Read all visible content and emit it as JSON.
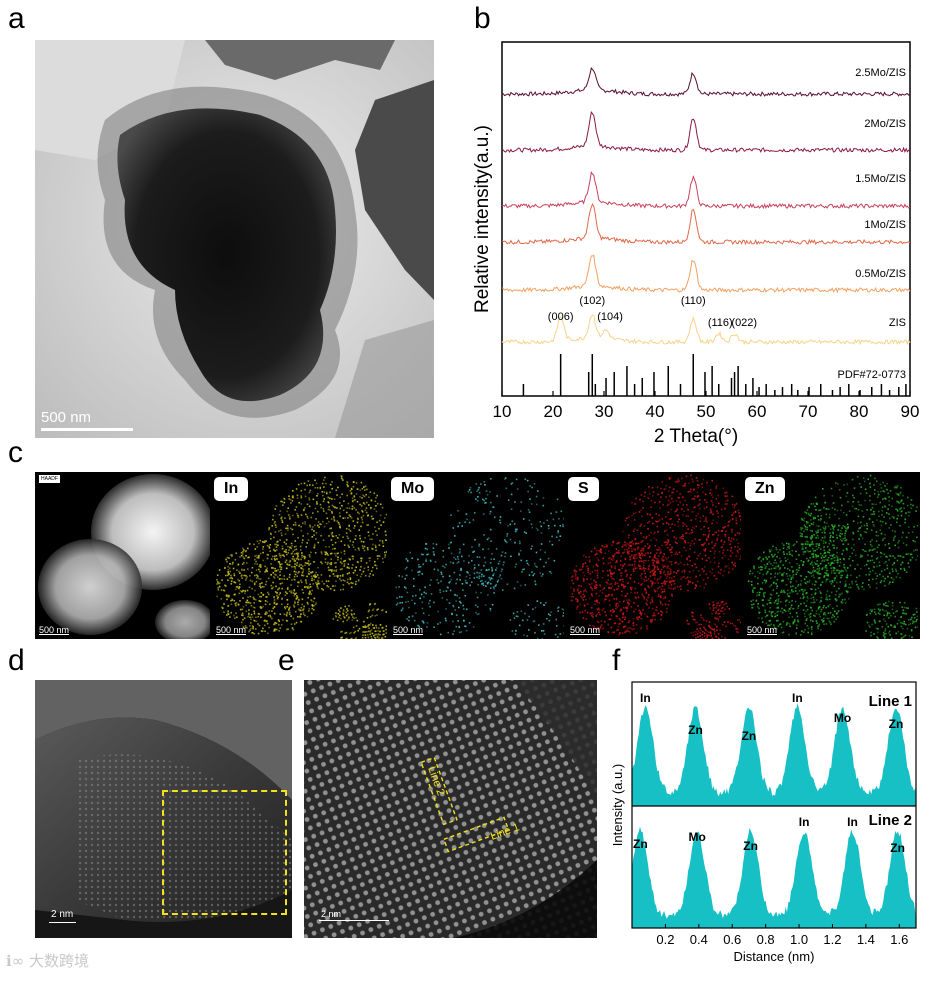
{
  "panels": {
    "a": {
      "letter": "a",
      "scale_bar": "500 nm"
    },
    "b": {
      "letter": "b",
      "ylabel": "Relative intensity(a.u.)",
      "xlabel": "2 Theta(°)",
      "xticks": [
        10,
        20,
        30,
        40,
        50,
        60,
        70,
        80,
        90
      ],
      "series_labels": [
        "2.5Mo/ZIS",
        "2Mo/ZIS",
        "1.5Mo/ZIS",
        "1Mo/ZIS",
        "0.5Mo/ZIS",
        "ZIS",
        "PDF#72-0773"
      ],
      "series_colors": [
        "#5a0f2e",
        "#8b1a45",
        "#c9405c",
        "#e06848",
        "#f2a060",
        "#f7d38a",
        "#000000"
      ],
      "peak_labels": [
        "(006)",
        "(102)",
        "(104)",
        "(110)",
        "(116)",
        "(022)"
      ]
    },
    "c": {
      "letter": "c",
      "elements": [
        "In",
        "Mo",
        "S",
        "Zn"
      ],
      "element_colors": [
        "#c8c020",
        "#40b8c0",
        "#d01818",
        "#28b028"
      ],
      "scale_bar": "500 nm",
      "corner_tag": "HAADF"
    },
    "d": {
      "letter": "d",
      "scale_bar": "2 nm"
    },
    "e": {
      "letter": "e",
      "scale_bar": "2 nm",
      "line1": "Line 1",
      "line2": "Line 2"
    },
    "f": {
      "letter": "f",
      "ylabel": "Intensity (a.u.)",
      "xlabel": "Distance (nm)",
      "xticks": [
        "0.2",
        "0.4",
        "0.6",
        "0.8",
        "1.0",
        "1.2",
        "1.4",
        "1.6"
      ],
      "line1_title": "Line 1",
      "line2_title": "Line 2",
      "line1_peaks": [
        "In",
        "Zn",
        "Zn",
        "In",
        "Mo",
        "Zn"
      ],
      "line2_peaks": [
        "Zn",
        "Mo",
        "Zn",
        "In",
        "In",
        "Zn"
      ],
      "fill_color": "#16c0c4"
    }
  },
  "chart_data": [
    {
      "type": "line",
      "panel": "b",
      "xlabel": "2 Theta(°)",
      "ylabel": "Relative intensity(a.u.)",
      "xlim": [
        10,
        90
      ],
      "series": [
        {
          "name": "2.5Mo/ZIS",
          "peaks_2theta": [
            27.7,
            47.5
          ]
        },
        {
          "name": "2Mo/ZIS",
          "peaks_2theta": [
            27.7,
            47.5
          ]
        },
        {
          "name": "1.5Mo/ZIS",
          "peaks_2theta": [
            27.7,
            47.5
          ]
        },
        {
          "name": "1Mo/ZIS",
          "peaks_2theta": [
            27.7,
            47.5
          ]
        },
        {
          "name": "0.5Mo/ZIS",
          "peaks_2theta": [
            27.7,
            47.5
          ]
        },
        {
          "name": "ZIS",
          "peaks_2theta": [
            21.5,
            27.7,
            30.4,
            47.5,
            52.5,
            55.6
          ]
        }
      ],
      "reference_lines_2theta": [
        14.2,
        21.5,
        27.0,
        27.7,
        28.3,
        30.4,
        32.0,
        34.5,
        36.0,
        37.5,
        39.8,
        42.6,
        45.0,
        47.5,
        49.8,
        51.2,
        52.5,
        55.0,
        55.6,
        56.3,
        57.8,
        59.2,
        60.4,
        61.8,
        63.5,
        65.0,
        66.8,
        68.0,
        70.2,
        72.5,
        74.8,
        76.3,
        78.0,
        80.2,
        82.5,
        84.4,
        86.0,
        87.8,
        89.2
      ]
    },
    {
      "type": "area",
      "panel": "f",
      "xlabel": "Distance (nm)",
      "ylabel": "Intensity (a.u.)",
      "xlim": [
        0,
        1.7
      ],
      "series": [
        {
          "name": "Line 1",
          "peak_positions_nm": [
            0.08,
            0.38,
            0.7,
            0.99,
            1.26,
            1.58
          ]
        },
        {
          "name": "Line 2",
          "peak_positions_nm": [
            0.05,
            0.39,
            0.71,
            1.03,
            1.32,
            1.59
          ]
        }
      ]
    }
  ]
}
